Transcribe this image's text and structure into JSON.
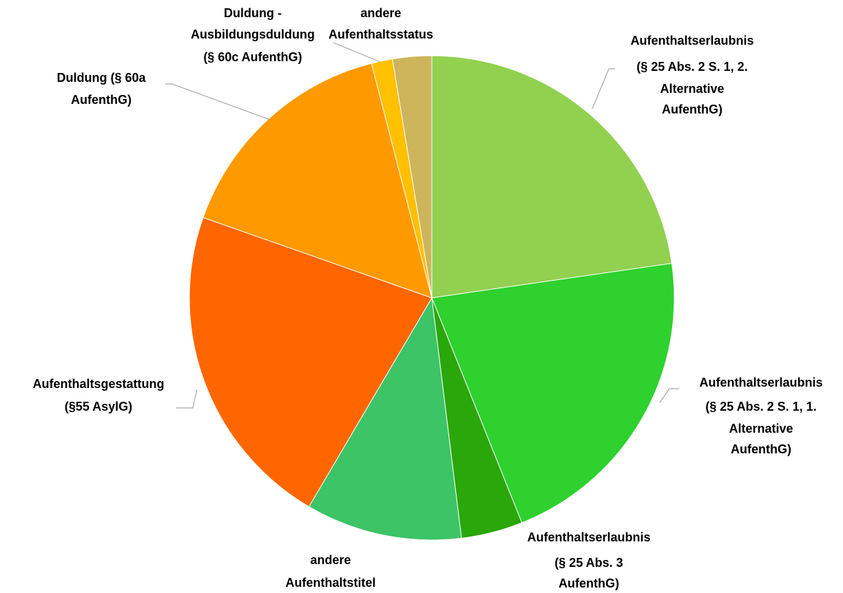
{
  "chart_data": {
    "type": "pie",
    "categories": [
      "Aufenthaltserlaubnis\n(§ 25 Abs. 2 S. 1, 2.\nAlternative\nAufenthG)",
      "Aufenthaltserlaubnis\n(§ 25 Abs. 2 S. 1, 1.\nAlternative\nAufenthG)",
      "Aufenthaltserlaubnis\n(§ 25 Abs. 3\nAufenthG)",
      "andere\nAufenthaltstitel",
      "Aufenthaltsgestattung\n(§55 AsylG)",
      "Duldung (§ 60a\nAufenthG)",
      "Duldung -\nAusbildungsduldung\n(§ 60c AufenthG)",
      "andere\nAufenthaltsstatus"
    ],
    "values": [
      22.7,
      21.2,
      4.1,
      10.4,
      21.9,
      15.6,
      1.4,
      2.6
    ],
    "colors": [
      "#92d050",
      "#2ed12e",
      "#2aa70a",
      "#3cc466",
      "#ff6600",
      "#ff9900",
      "#ffc000",
      "#cdb55c"
    ]
  }
}
